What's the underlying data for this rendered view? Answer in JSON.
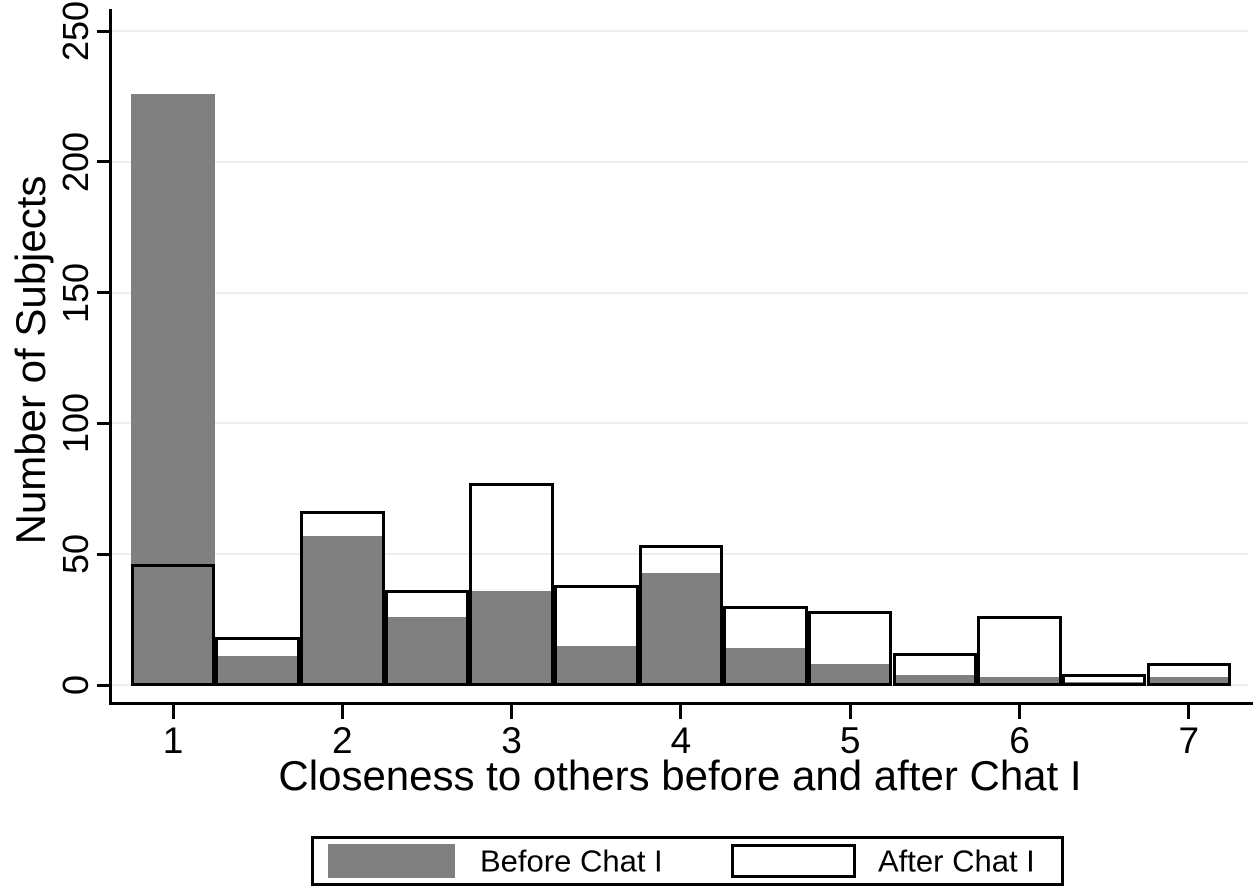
{
  "chart_data": {
    "type": "bar",
    "subtype": "overlaid-histogram",
    "title": "",
    "xlabel": "Closeness to others before and after Chat I",
    "ylabel": "Number of Subjects",
    "categories": [
      1,
      1.5,
      2,
      2.5,
      3,
      3.5,
      4,
      4.5,
      5,
      5.5,
      6,
      6.5,
      7
    ],
    "bin_width": 0.5,
    "series": [
      {
        "name": "Before Chat I",
        "style": "filled",
        "color": "#808080",
        "values": [
          226,
          11,
          57,
          26,
          36,
          15,
          43,
          14,
          8,
          4,
          3,
          1,
          3
        ]
      },
      {
        "name": "After Chat I",
        "style": "outline",
        "color": "#000000",
        "values": [
          46,
          18,
          66,
          36,
          77,
          38,
          53,
          30,
          28,
          12,
          26,
          4,
          8
        ]
      }
    ],
    "x_ticks": [
      1,
      2,
      3,
      4,
      5,
      6,
      7
    ],
    "y_ticks": [
      0,
      50,
      100,
      150,
      200,
      250
    ],
    "ylim": [
      0,
      261
    ],
    "xlim": [
      0.64,
      7.35
    ],
    "grid": true,
    "legend_position": "bottom",
    "colors": {
      "bar_fill": "#808080",
      "bar_outline": "#000000",
      "grid": "#e9f0f2",
      "axis": "#000000",
      "background": "#ffffff"
    }
  }
}
